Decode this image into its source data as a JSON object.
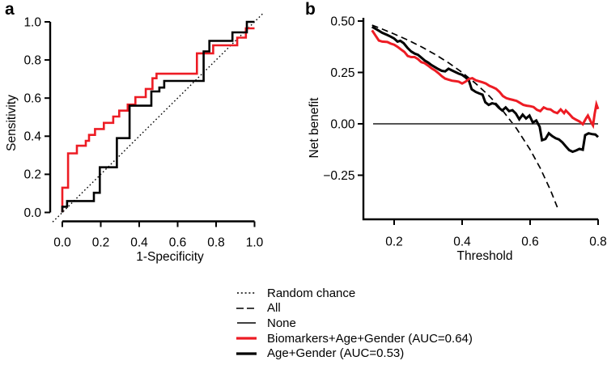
{
  "figure": {
    "panel_a": {
      "letter": "a",
      "xlabel": "1-Specificity",
      "ylabel": "Sensitivity"
    },
    "panel_b": {
      "letter": "b",
      "xlabel": "Threshold",
      "ylabel": "Net benefit"
    }
  },
  "legend": {
    "items": [
      {
        "label": "Random chance",
        "color": "#000000",
        "dash": "dotted",
        "width": 1.5
      },
      {
        "label": "All",
        "color": "#000000",
        "dash": "dashed",
        "width": 1.6
      },
      {
        "label": "None",
        "color": "#000000",
        "dash": "solid",
        "width": 1.6
      },
      {
        "label": "Biomarkers+Age+Gender (AUC=0.64)",
        "color": "#ed1c24",
        "dash": "solid",
        "width": 3.2
      },
      {
        "label": "Age+Gender (AUC=0.53)",
        "color": "#000000",
        "dash": "solid",
        "width": 3.2
      }
    ]
  },
  "chart_data": [
    {
      "type": "line",
      "panel": "a",
      "title": "ROC curves",
      "xlabel": "1-Specificity",
      "ylabel": "Sensitivity",
      "xlim": [
        0,
        1
      ],
      "ylim": [
        0,
        1
      ],
      "grid": false,
      "xticks": {
        "values": [
          0,
          0.2,
          0.4,
          0.6,
          0.8,
          1
        ],
        "labels": [
          "0.0",
          "0.2",
          "0.4",
          "0.6",
          "0.8",
          "1.0"
        ]
      },
      "yticks": {
        "values": [
          0,
          0.2,
          0.4,
          0.6,
          0.8,
          1
        ],
        "labels": [
          "0.0",
          "0.2",
          "0.4",
          "0.6",
          "0.8",
          "1.0"
        ]
      },
      "series": [
        {
          "id": "random-chance-line",
          "name": "Random chance",
          "color": "#000000",
          "dash": "dotted",
          "width": 1.4,
          "points": [
            [
              -0.05,
              -0.05
            ],
            [
              1.05,
              1.05
            ]
          ]
        },
        {
          "id": "roc-biomarkers-age-gender",
          "name": "Biomarkers+Age+Gender (AUC=0.64)",
          "auc": 0.64,
          "color": "#ed1c24",
          "dash": "solid",
          "width": 2.6,
          "points": [
            [
              0,
              0
            ],
            [
              0,
              0.13
            ],
            [
              0.03,
              0.13
            ],
            [
              0.03,
              0.31
            ],
            [
              0.076,
              0.31
            ],
            [
              0.076,
              0.35
            ],
            [
              0.122,
              0.35
            ],
            [
              0.122,
              0.376
            ],
            [
              0.139,
              0.376
            ],
            [
              0.139,
              0.407
            ],
            [
              0.17,
              0.407
            ],
            [
              0.17,
              0.438
            ],
            [
              0.216,
              0.438
            ],
            [
              0.216,
              0.47
            ],
            [
              0.265,
              0.47
            ],
            [
              0.265,
              0.503
            ],
            [
              0.296,
              0.503
            ],
            [
              0.296,
              0.534
            ],
            [
              0.34,
              0.534
            ],
            [
              0.34,
              0.566
            ],
            [
              0.38,
              0.566
            ],
            [
              0.38,
              0.605
            ],
            [
              0.434,
              0.605
            ],
            [
              0.434,
              0.648
            ],
            [
              0.469,
              0.648
            ],
            [
              0.469,
              0.704
            ],
            [
              0.49,
              0.704
            ],
            [
              0.49,
              0.728
            ],
            [
              0.7,
              0.728
            ],
            [
              0.7,
              0.835
            ],
            [
              0.785,
              0.835
            ],
            [
              0.785,
              0.877
            ],
            [
              0.91,
              0.877
            ],
            [
              0.91,
              0.917
            ],
            [
              0.955,
              0.917
            ],
            [
              0.955,
              0.966
            ],
            [
              1,
              0.966
            ]
          ]
        },
        {
          "id": "roc-age-gender",
          "name": "Age+Gender (AUC=0.53)",
          "auc": 0.53,
          "color": "#000000",
          "dash": "solid",
          "width": 2.6,
          "points": [
            [
              0,
              0
            ],
            [
              0,
              0.03
            ],
            [
              0.025,
              0.03
            ],
            [
              0.025,
              0.06
            ],
            [
              0.164,
              0.06
            ],
            [
              0.164,
              0.103
            ],
            [
              0.195,
              0.103
            ],
            [
              0.195,
              0.237
            ],
            [
              0.284,
              0.237
            ],
            [
              0.284,
              0.39
            ],
            [
              0.35,
              0.39
            ],
            [
              0.35,
              0.56
            ],
            [
              0.463,
              0.56
            ],
            [
              0.463,
              0.635
            ],
            [
              0.505,
              0.635
            ],
            [
              0.505,
              0.655
            ],
            [
              0.53,
              0.655
            ],
            [
              0.53,
              0.69
            ],
            [
              0.735,
              0.69
            ],
            [
              0.735,
              0.845
            ],
            [
              0.765,
              0.845
            ],
            [
              0.765,
              0.9
            ],
            [
              0.885,
              0.9
            ],
            [
              0.885,
              0.945
            ],
            [
              0.96,
              0.945
            ],
            [
              0.96,
              1
            ],
            [
              1,
              1
            ]
          ]
        }
      ]
    },
    {
      "type": "line",
      "panel": "b",
      "title": "Decision curve analysis",
      "xlabel": "Threshold",
      "ylabel": "Net benefit",
      "xlim": [
        0.11,
        0.8
      ],
      "ylim": [
        -0.465,
        0.52
      ],
      "grid": false,
      "xticks": {
        "values": [
          0.2,
          0.4,
          0.6,
          0.8
        ],
        "labels": [
          "0.2",
          "0.4",
          "0.6",
          "0.8"
        ]
      },
      "yticks": {
        "values": [
          0.5,
          0.25,
          0,
          -0.25
        ],
        "labels": [
          "0.50",
          "0.25",
          "0.00",
          "−0.25"
        ]
      },
      "series": [
        {
          "id": "dca-all",
          "name": "All",
          "color": "#000000",
          "dash": "dashed",
          "width": 1.7,
          "points": [
            [
              0.135,
              0.48
            ],
            [
              0.16,
              0.464
            ],
            [
              0.2,
              0.437
            ],
            [
              0.24,
              0.408
            ],
            [
              0.28,
              0.375
            ],
            [
              0.32,
              0.338
            ],
            [
              0.36,
              0.297
            ],
            [
              0.4,
              0.25
            ],
            [
              0.44,
              0.196
            ],
            [
              0.48,
              0.135
            ],
            [
              0.52,
              0.063
            ],
            [
              0.56,
              -0.023
            ],
            [
              0.6,
              -0.125
            ],
            [
              0.63,
              -0.216
            ],
            [
              0.66,
              -0.323
            ],
            [
              0.68,
              -0.406
            ]
          ]
        },
        {
          "id": "dca-none",
          "name": "None",
          "color": "#555555",
          "dash": "solid",
          "width": 2.1,
          "points": [
            [
              0.138,
              0
            ],
            [
              0.8,
              0
            ]
          ]
        },
        {
          "id": "dca-age-gender",
          "name": "Age+Gender",
          "color": "#000000",
          "dash": "solid",
          "width": 3,
          "points": [
            [
              0.135,
              0.472
            ],
            [
              0.15,
              0.458
            ],
            [
              0.165,
              0.443
            ],
            [
              0.18,
              0.432
            ],
            [
              0.19,
              0.424
            ],
            [
              0.2,
              0.415
            ],
            [
              0.21,
              0.4
            ],
            [
              0.218,
              0.404
            ],
            [
              0.228,
              0.392
            ],
            [
              0.24,
              0.368
            ],
            [
              0.25,
              0.352
            ],
            [
              0.26,
              0.342
            ],
            [
              0.27,
              0.336
            ],
            [
              0.28,
              0.322
            ],
            [
              0.29,
              0.308
            ],
            [
              0.3,
              0.298
            ],
            [
              0.31,
              0.286
            ],
            [
              0.32,
              0.276
            ],
            [
              0.33,
              0.266
            ],
            [
              0.34,
              0.258
            ],
            [
              0.35,
              0.255
            ],
            [
              0.36,
              0.268
            ],
            [
              0.37,
              0.26
            ],
            [
              0.38,
              0.252
            ],
            [
              0.39,
              0.244
            ],
            [
              0.4,
              0.238
            ],
            [
              0.41,
              0.226
            ],
            [
              0.42,
              0.21
            ],
            [
              0.428,
              0.168
            ],
            [
              0.44,
              0.155
            ],
            [
              0.45,
              0.148
            ],
            [
              0.46,
              0.142
            ],
            [
              0.468,
              0.105
            ],
            [
              0.478,
              0.092
            ],
            [
              0.488,
              0.1
            ],
            [
              0.498,
              0.096
            ],
            [
              0.508,
              0.078
            ],
            [
              0.518,
              0.065
            ],
            [
              0.528,
              0.08
            ],
            [
              0.538,
              0.062
            ],
            [
              0.548,
              0.066
            ],
            [
              0.558,
              0.05
            ],
            [
              0.568,
              0.022
            ],
            [
              0.578,
              0.045
            ],
            [
              0.588,
              0.026
            ],
            [
              0.598,
              0.04
            ],
            [
              0.608,
              0.006
            ],
            [
              0.618,
              0.016
            ],
            [
              0.628,
              -0.014
            ],
            [
              0.635,
              -0.08
            ],
            [
              0.645,
              -0.074
            ],
            [
              0.655,
              -0.046
            ],
            [
              0.665,
              -0.06
            ],
            [
              0.675,
              -0.07
            ],
            [
              0.685,
              -0.076
            ],
            [
              0.695,
              -0.09
            ],
            [
              0.705,
              -0.11
            ],
            [
              0.715,
              -0.128
            ],
            [
              0.725,
              -0.136
            ],
            [
              0.735,
              -0.13
            ],
            [
              0.745,
              -0.122
            ],
            [
              0.755,
              -0.126
            ],
            [
              0.762,
              -0.055
            ],
            [
              0.772,
              -0.046
            ],
            [
              0.782,
              -0.05
            ],
            [
              0.792,
              -0.052
            ],
            [
              0.8,
              -0.064
            ]
          ]
        },
        {
          "id": "dca-biomarkers-age-gender",
          "name": "Biomarkers+Age+Gender",
          "color": "#ed1c24",
          "dash": "solid",
          "width": 3,
          "points": [
            [
              0.135,
              0.455
            ],
            [
              0.145,
              0.43
            ],
            [
              0.155,
              0.405
            ],
            [
              0.165,
              0.4
            ],
            [
              0.18,
              0.398
            ],
            [
              0.19,
              0.39
            ],
            [
              0.2,
              0.385
            ],
            [
              0.21,
              0.375
            ],
            [
              0.22,
              0.362
            ],
            [
              0.23,
              0.35
            ],
            [
              0.24,
              0.33
            ],
            [
              0.25,
              0.325
            ],
            [
              0.26,
              0.325
            ],
            [
              0.27,
              0.315
            ],
            [
              0.28,
              0.3
            ],
            [
              0.29,
              0.295
            ],
            [
              0.3,
              0.283
            ],
            [
              0.31,
              0.27
            ],
            [
              0.32,
              0.26
            ],
            [
              0.33,
              0.247
            ],
            [
              0.34,
              0.232
            ],
            [
              0.35,
              0.22
            ],
            [
              0.36,
              0.215
            ],
            [
              0.37,
              0.21
            ],
            [
              0.38,
              0.208
            ],
            [
              0.39,
              0.205
            ],
            [
              0.4,
              0.196
            ],
            [
              0.41,
              0.205
            ],
            [
              0.42,
              0.218
            ],
            [
              0.43,
              0.222
            ],
            [
              0.44,
              0.212
            ],
            [
              0.45,
              0.207
            ],
            [
              0.46,
              0.202
            ],
            [
              0.47,
              0.196
            ],
            [
              0.48,
              0.185
            ],
            [
              0.49,
              0.178
            ],
            [
              0.5,
              0.17
            ],
            [
              0.51,
              0.155
            ],
            [
              0.52,
              0.135
            ],
            [
              0.53,
              0.125
            ],
            [
              0.54,
              0.12
            ],
            [
              0.55,
              0.116
            ],
            [
              0.56,
              0.112
            ],
            [
              0.57,
              0.102
            ],
            [
              0.58,
              0.092
            ],
            [
              0.59,
              0.088
            ],
            [
              0.6,
              0.086
            ],
            [
              0.61,
              0.082
            ],
            [
              0.62,
              0.068
            ],
            [
              0.63,
              0.062
            ],
            [
              0.64,
              0.08
            ],
            [
              0.65,
              0.072
            ],
            [
              0.66,
              0.07
            ],
            [
              0.67,
              0.058
            ],
            [
              0.68,
              0.052
            ],
            [
              0.69,
              0.07
            ],
            [
              0.7,
              0.052
            ],
            [
              0.705,
              0.065
            ],
            [
              0.715,
              0.048
            ],
            [
              0.725,
              0.03
            ],
            [
              0.735,
              0.02
            ],
            [
              0.745,
              0.012
            ],
            [
              0.755,
              -0.002
            ],
            [
              0.765,
              0.028
            ],
            [
              0.77,
              0.04
            ],
            [
              0.78,
              0.006
            ],
            [
              0.785,
              -0.008
            ],
            [
              0.79,
              0.05
            ],
            [
              0.795,
              0.095
            ],
            [
              0.8,
              0.072
            ]
          ]
        }
      ]
    }
  ]
}
